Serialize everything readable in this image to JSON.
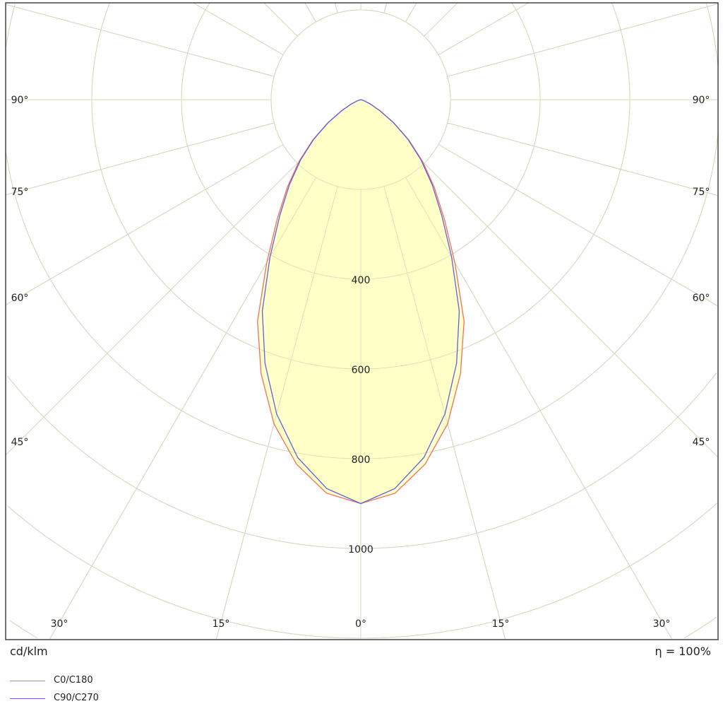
{
  "chart_data": {
    "type": "polar",
    "unit_label": "cd/klm",
    "efficiency_label": "η = 100%",
    "radial_ticks": [
      400,
      600,
      800,
      1000
    ],
    "radial_grid_step": 200,
    "angle_tick_labels": [
      "0°",
      "15°",
      "30°",
      "45°",
      "60°",
      "75°",
      "90°"
    ],
    "angles_deg": [
      0,
      5,
      10,
      15,
      20,
      25,
      30,
      35,
      40,
      45,
      50,
      55,
      60,
      65,
      70,
      75,
      80,
      85,
      90
    ],
    "series": [
      {
        "name": "C0/C180",
        "color": "#f07060",
        "values": [
          900,
          880,
          825,
          748,
          650,
          545,
          420,
          325,
          255,
          195,
          140,
          90,
          50,
          25,
          10,
          4,
          1,
          0,
          0
        ]
      },
      {
        "name": "C90/C270",
        "color": "#6060e0",
        "values": [
          900,
          870,
          810,
          725,
          625,
          520,
          405,
          315,
          248,
          190,
          137,
          88,
          49,
          24,
          10,
          4,
          1,
          0,
          0
        ]
      }
    ],
    "fill_color": "#ffffc8",
    "grid": true,
    "legend_position": "bottom-left"
  }
}
